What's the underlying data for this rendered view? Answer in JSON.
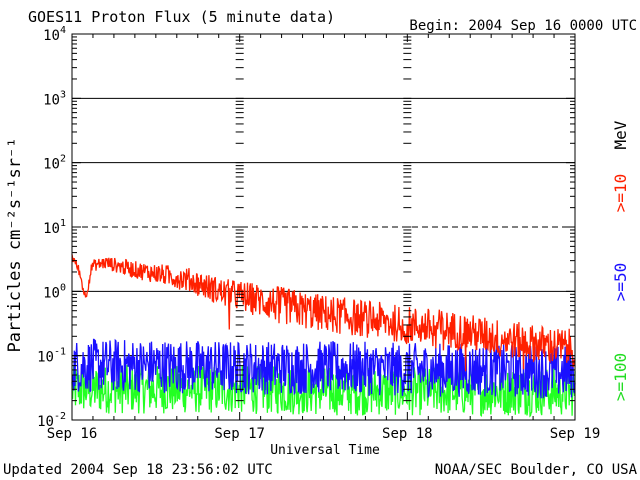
{
  "chart_data": {
    "type": "line",
    "title": "GOES11 Proton Flux (5 minute data)",
    "begin_label": "Begin: 2004 Sep 16 0000 UTC",
    "xlabel": "Universal Time",
    "ylabel": "Particles cm⁻²s⁻¹sr⁻¹",
    "yscale": "log",
    "ylim": [
      0.01,
      10000
    ],
    "y_ticks": [
      {
        "base": "10",
        "exp": "4",
        "value": 10000
      },
      {
        "base": "10",
        "exp": "3",
        "value": 1000
      },
      {
        "base": "10",
        "exp": "2",
        "value": 100
      },
      {
        "base": "10",
        "exp": "1",
        "value": 10
      },
      {
        "base": "10",
        "exp": "0",
        "value": 1
      },
      {
        "base": "10",
        "exp": "-1",
        "value": 0.1
      },
      {
        "base": "10",
        "exp": "-2",
        "value": 0.01
      }
    ],
    "xlim": [
      0,
      3
    ],
    "x_ticks": [
      {
        "label": "Sep 16",
        "value": 0
      },
      {
        "label": "Sep 17",
        "value": 1
      },
      {
        "label": "Sep 18",
        "value": 2
      },
      {
        "label": "Sep 19",
        "value": 3
      }
    ],
    "threshold": {
      "value": 10,
      "style": "dashed"
    },
    "series": [
      {
        "name": ">=10",
        "color": "#ff2000",
        "x": [
          0.0,
          0.04,
          0.08,
          0.12,
          0.2,
          0.3,
          0.4,
          0.5,
          0.6,
          0.7,
          0.8,
          0.9,
          1.0,
          1.2,
          1.4,
          1.6,
          1.8,
          2.0,
          2.2,
          2.4,
          2.6,
          2.8,
          3.0
        ],
        "values": [
          3.5,
          2.2,
          0.8,
          2.5,
          2.8,
          2.4,
          2.1,
          1.9,
          1.7,
          1.5,
          1.2,
          0.95,
          0.85,
          0.65,
          0.5,
          0.42,
          0.36,
          0.3,
          0.27,
          0.22,
          0.18,
          0.15,
          0.13
        ]
      },
      {
        "name": ">=50",
        "color": "#1a10ff",
        "x": [
          0.0,
          0.5,
          1.0,
          1.5,
          2.0,
          2.5,
          3.0
        ],
        "values": [
          0.07,
          0.07,
          0.065,
          0.065,
          0.06,
          0.06,
          0.055
        ]
      },
      {
        "name": ">=100",
        "color": "#22ff22",
        "x": [
          0.0,
          0.5,
          1.0,
          1.5,
          2.0,
          2.5,
          3.0
        ],
        "values": [
          0.03,
          0.03,
          0.03,
          0.028,
          0.028,
          0.028,
          0.027
        ]
      }
    ],
    "energy_unit": "MeV"
  },
  "footer": {
    "updated": "Updated 2004 Sep 18 23:56:02 UTC",
    "credit": "NOAA/SEC Boulder, CO USA"
  }
}
